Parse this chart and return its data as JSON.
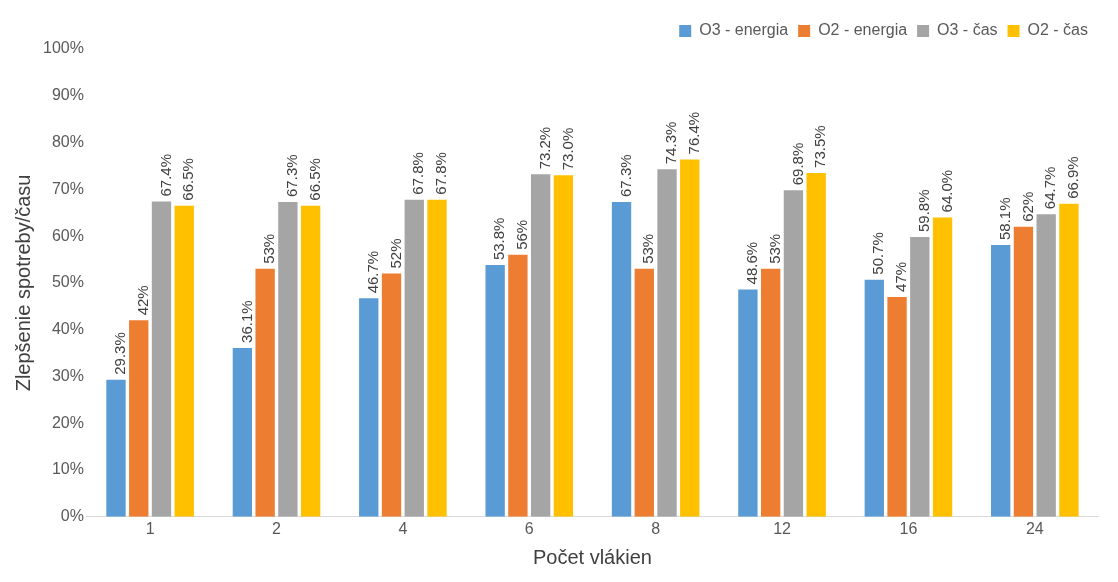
{
  "chart_data": {
    "type": "bar",
    "xlabel": "Počet vlákien",
    "ylabel": "Zlepšenie spotreby/času",
    "categories": [
      "1",
      "2",
      "4",
      "6",
      "8",
      "12",
      "16",
      "24"
    ],
    "series": [
      {
        "name": "O3 - energia",
        "color": "#5b9bd5",
        "values": [
          29.3,
          36.1,
          46.7,
          53.8,
          67.3,
          48.6,
          50.7,
          58.1
        ],
        "value_labels": [
          "29.3%",
          "36.1%",
          "46.7%",
          "53.8%",
          "67.3%",
          "48.6%",
          "50.7%",
          "58.1%"
        ]
      },
      {
        "name": "O2 - energia",
        "color": "#ed7d31",
        "values": [
          42,
          53,
          52,
          56,
          53,
          53,
          47,
          62
        ],
        "value_labels": [
          "42%",
          "53%",
          "52%",
          "56%",
          "53%",
          "53%",
          "47%",
          "62%"
        ]
      },
      {
        "name": "O3 - čas",
        "color": "#a5a5a5",
        "values": [
          67.4,
          67.3,
          67.8,
          73.2,
          74.3,
          69.8,
          59.8,
          64.7
        ],
        "value_labels": [
          "67.4%",
          "67.3%",
          "67.8%",
          "73.2%",
          "74.3%",
          "69.8%",
          "59.8%",
          "64.7%"
        ]
      },
      {
        "name": "O2 - čas",
        "color": "#ffc000",
        "values": [
          66.5,
          66.5,
          67.8,
          73.0,
          76.4,
          73.5,
          64.0,
          66.9
        ],
        "value_labels": [
          "66.5%",
          "66.5%",
          "67.8%",
          "73.0%",
          "76.4%",
          "73.5%",
          "64.0%",
          "66.9%"
        ]
      }
    ],
    "ylim": [
      0,
      100
    ],
    "yticks": [
      {
        "value": 0,
        "label": "0%"
      },
      {
        "value": 10,
        "label": "10%"
      },
      {
        "value": 20,
        "label": "20%"
      },
      {
        "value": 30,
        "label": "30%"
      },
      {
        "value": 40,
        "label": "40%"
      },
      {
        "value": 50,
        "label": "50%"
      },
      {
        "value": 60,
        "label": "60%"
      },
      {
        "value": 70,
        "label": "70%"
      },
      {
        "value": 80,
        "label": "80%"
      },
      {
        "value": 90,
        "label": "90%"
      },
      {
        "value": 100,
        "label": "100%"
      }
    ],
    "grid": false,
    "legend": "top right"
  }
}
